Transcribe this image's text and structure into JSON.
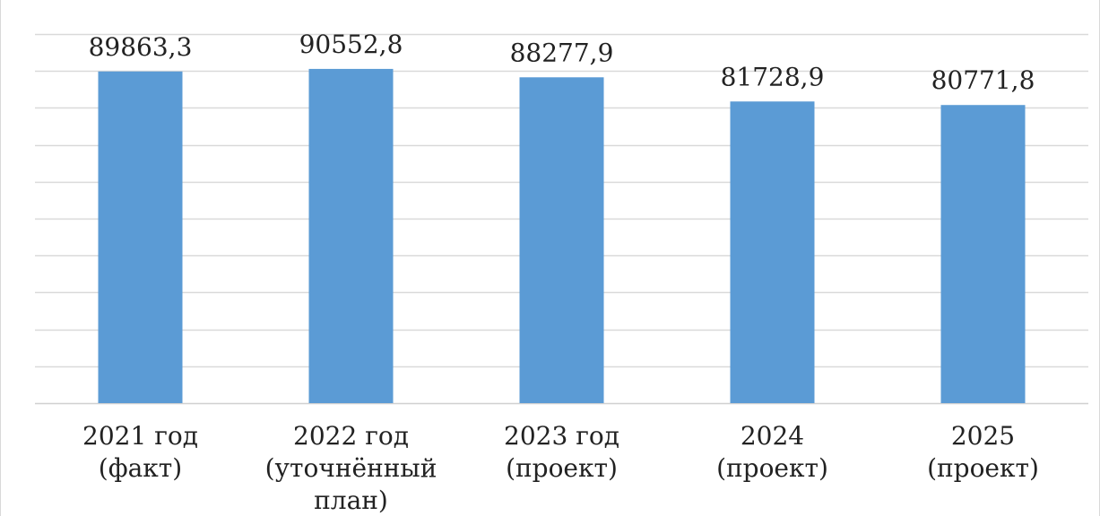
{
  "chart_data": {
    "type": "bar",
    "title": "",
    "xlabel": "",
    "ylabel": "",
    "categories": [
      [
        "2021 год",
        "(факт)"
      ],
      [
        "2022 год",
        "(уточнённый",
        "план)"
      ],
      [
        "2023 год",
        "(проект)"
      ],
      [
        "2024",
        "(проект)"
      ],
      [
        "2025",
        "(проект)"
      ]
    ],
    "values": [
      89863.3,
      90552.8,
      88277.9,
      81728.9,
      80771.8
    ],
    "value_labels": [
      "89863,3",
      "90552,8",
      "88277,9",
      "81728,9",
      "80771,8"
    ],
    "ylim": [
      0,
      100000
    ],
    "y_tick_step": 10000,
    "grid": true,
    "legend": "none",
    "bar_color": "#5b9bd5"
  }
}
